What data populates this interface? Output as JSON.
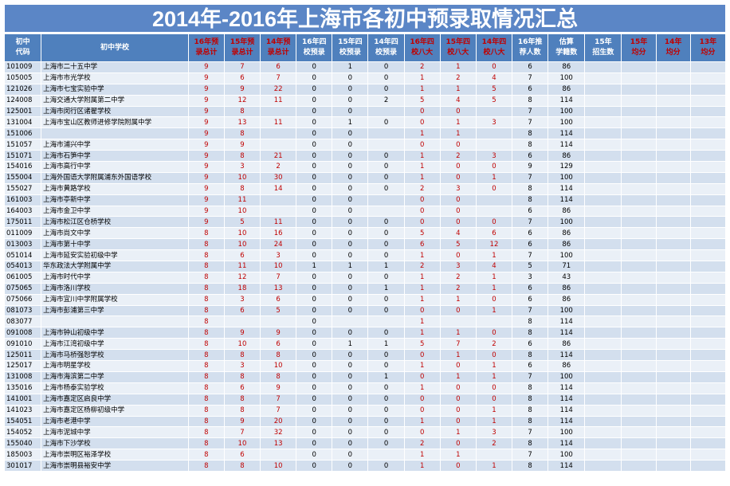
{
  "title": "2014年-2016年上海市各初中预录取情况汇总",
  "colors": {
    "title_bg": "#5b86c6",
    "header_bg": "#4f80bd",
    "row_odd": "#d3dfee",
    "row_even": "#eaf0f7",
    "red_text": "#c00000"
  },
  "columns": [
    {
      "key": "code",
      "label": "初中\n代码",
      "red": false
    },
    {
      "key": "name",
      "label": "初中学校",
      "red": false
    },
    {
      "key": "p16",
      "label": "16年预\n录总计",
      "red": true
    },
    {
      "key": "p15",
      "label": "15年预\n录总计",
      "red": true
    },
    {
      "key": "p14",
      "label": "14年预\n录总计",
      "red": true
    },
    {
      "key": "s4_16",
      "label": "16年四\n校预录",
      "red": false
    },
    {
      "key": "s4_15",
      "label": "15年四\n校预录",
      "red": false
    },
    {
      "key": "s4_14",
      "label": "14年四\n校预录",
      "red": false
    },
    {
      "key": "b8_16",
      "label": "16年四\n校八大",
      "red": true
    },
    {
      "key": "b8_15",
      "label": "15年四\n校八大",
      "red": true
    },
    {
      "key": "b8_14",
      "label": "14年四\n校八大",
      "red": true
    },
    {
      "key": "rec16",
      "label": "16年推\n荐人数",
      "red": false
    },
    {
      "key": "est",
      "label": "估算\n学籍数",
      "red": false
    },
    {
      "key": "enr15",
      "label": "15年\n招生数",
      "red": false
    },
    {
      "key": "avg15",
      "label": "15年\n均分",
      "red": true
    },
    {
      "key": "avg14",
      "label": "14年\n均分",
      "red": true
    },
    {
      "key": "avg13",
      "label": "13年\n均分",
      "red": true
    }
  ],
  "rows": [
    [
      "101009",
      "上海市二十五中学",
      "9",
      "7",
      "6",
      "0",
      "1",
      "0",
      "2",
      "1",
      "0",
      "6",
      "86",
      "",
      "",
      "",
      ""
    ],
    [
      "105005",
      "上海市市光学校",
      "9",
      "6",
      "7",
      "0",
      "0",
      "0",
      "1",
      "2",
      "4",
      "7",
      "100",
      "",
      "",
      "",
      ""
    ],
    [
      "121026",
      "上海市七宝实验中学",
      "9",
      "9",
      "22",
      "0",
      "0",
      "0",
      "1",
      "1",
      "5",
      "6",
      "86",
      "",
      "",
      "",
      ""
    ],
    [
      "124008",
      "上海交通大学附属第二中学",
      "9",
      "12",
      "11",
      "0",
      "0",
      "2",
      "5",
      "4",
      "5",
      "8",
      "114",
      "",
      "",
      "",
      ""
    ],
    [
      "125001",
      "上海市闵行区诸翟学校",
      "9",
      "8",
      "",
      "0",
      "0",
      "",
      "0",
      "0",
      "",
      "7",
      "100",
      "",
      "",
      "",
      ""
    ],
    [
      "131004",
      "上海市宝山区教师进修学院附属中学",
      "9",
      "13",
      "11",
      "0",
      "1",
      "0",
      "0",
      "1",
      "3",
      "7",
      "100",
      "",
      "",
      "",
      ""
    ],
    [
      "151006",
      "",
      "9",
      "8",
      "",
      "0",
      "0",
      "",
      "1",
      "1",
      "",
      "8",
      "114",
      "",
      "",
      "",
      ""
    ],
    [
      "151057",
      "上海市浦兴中学",
      "9",
      "9",
      "",
      "0",
      "0",
      "",
      "0",
      "0",
      "",
      "8",
      "114",
      "",
      "",
      "",
      ""
    ],
    [
      "151071",
      "上海市石笋中学",
      "9",
      "8",
      "21",
      "0",
      "0",
      "0",
      "1",
      "2",
      "3",
      "6",
      "86",
      "",
      "",
      "",
      ""
    ],
    [
      "154016",
      "上海市高行中学",
      "9",
      "3",
      "2",
      "0",
      "0",
      "0",
      "1",
      "0",
      "0",
      "9",
      "129",
      "",
      "",
      "",
      ""
    ],
    [
      "155004",
      "上海外国语大学附属浦东外国语学校",
      "9",
      "10",
      "30",
      "0",
      "0",
      "0",
      "1",
      "0",
      "1",
      "7",
      "100",
      "",
      "",
      "",
      ""
    ],
    [
      "155027",
      "上海市黄路学校",
      "9",
      "8",
      "14",
      "0",
      "0",
      "0",
      "2",
      "3",
      "0",
      "8",
      "114",
      "",
      "",
      "",
      ""
    ],
    [
      "161003",
      "上海市亭新中学",
      "9",
      "11",
      "",
      "0",
      "0",
      "",
      "0",
      "0",
      "",
      "8",
      "114",
      "",
      "",
      "",
      ""
    ],
    [
      "164003",
      "上海市金卫中学",
      "9",
      "10",
      "",
      "0",
      "0",
      "",
      "0",
      "0",
      "",
      "6",
      "86",
      "",
      "",
      "",
      ""
    ],
    [
      "175011",
      "上海市松江区仓桥学校",
      "9",
      "5",
      "11",
      "0",
      "0",
      "0",
      "0",
      "0",
      "0",
      "7",
      "100",
      "",
      "",
      "",
      ""
    ],
    [
      "011009",
      "上海市尚文中学",
      "8",
      "10",
      "16",
      "0",
      "0",
      "0",
      "5",
      "4",
      "6",
      "6",
      "86",
      "",
      "",
      "",
      ""
    ],
    [
      "013003",
      "上海市第十中学",
      "8",
      "10",
      "24",
      "0",
      "0",
      "0",
      "6",
      "5",
      "12",
      "6",
      "86",
      "",
      "",
      "",
      ""
    ],
    [
      "051014",
      "上海市延安实验初级中学",
      "8",
      "6",
      "3",
      "0",
      "0",
      "0",
      "1",
      "0",
      "1",
      "7",
      "100",
      "",
      "",
      "",
      ""
    ],
    [
      "054013",
      "华东政法大学附属中学",
      "8",
      "11",
      "10",
      "1",
      "1",
      "1",
      "2",
      "3",
      "4",
      "5",
      "71",
      "",
      "",
      "",
      ""
    ],
    [
      "061005",
      "上海市时代中学",
      "8",
      "12",
      "7",
      "0",
      "0",
      "0",
      "1",
      "2",
      "1",
      "3",
      "43",
      "",
      "",
      "",
      ""
    ],
    [
      "075065",
      "上海市洛川学校",
      "8",
      "18",
      "13",
      "0",
      "0",
      "1",
      "1",
      "2",
      "1",
      "6",
      "86",
      "",
      "",
      "",
      ""
    ],
    [
      "075066",
      "上海市宜川中学附属学校",
      "8",
      "3",
      "6",
      "0",
      "0",
      "0",
      "1",
      "1",
      "0",
      "6",
      "86",
      "",
      "",
      "",
      ""
    ],
    [
      "081073",
      "上海市彭浦第三中学",
      "8",
      "6",
      "5",
      "0",
      "0",
      "0",
      "0",
      "0",
      "1",
      "7",
      "100",
      "",
      "",
      "",
      ""
    ],
    [
      "083077",
      "",
      "8",
      "",
      "",
      "0",
      "",
      "",
      "1",
      "",
      "",
      "8",
      "114",
      "",
      "",
      "",
      ""
    ],
    [
      "091008",
      "上海市钟山初级中学",
      "8",
      "9",
      "9",
      "0",
      "0",
      "0",
      "1",
      "1",
      "0",
      "8",
      "114",
      "",
      "",
      "",
      ""
    ],
    [
      "091010",
      "上海市江湾初级中学",
      "8",
      "10",
      "6",
      "0",
      "1",
      "1",
      "5",
      "7",
      "2",
      "6",
      "86",
      "",
      "",
      "",
      ""
    ],
    [
      "125011",
      "上海市马桥强恕学校",
      "8",
      "8",
      "8",
      "0",
      "0",
      "0",
      "0",
      "1",
      "0",
      "8",
      "114",
      "",
      "",
      "",
      ""
    ],
    [
      "125017",
      "上海市明星学校",
      "8",
      "3",
      "10",
      "0",
      "0",
      "0",
      "1",
      "0",
      "1",
      "6",
      "86",
      "",
      "",
      "",
      ""
    ],
    [
      "131008",
      "上海市海滨第二中学",
      "8",
      "8",
      "8",
      "0",
      "0",
      "1",
      "0",
      "1",
      "1",
      "7",
      "100",
      "",
      "",
      "",
      ""
    ],
    [
      "135016",
      "上海市杨泰实验学校",
      "8",
      "6",
      "9",
      "0",
      "0",
      "0",
      "1",
      "0",
      "0",
      "8",
      "114",
      "",
      "",
      "",
      ""
    ],
    [
      "141001",
      "上海市嘉定区启良中学",
      "8",
      "8",
      "7",
      "0",
      "0",
      "0",
      "0",
      "0",
      "0",
      "8",
      "114",
      "",
      "",
      "",
      ""
    ],
    [
      "141023",
      "上海市嘉定区杨柳初级中学",
      "8",
      "8",
      "7",
      "0",
      "0",
      "0",
      "0",
      "0",
      "1",
      "8",
      "114",
      "",
      "",
      "",
      ""
    ],
    [
      "154051",
      "上海市老港中学",
      "8",
      "9",
      "20",
      "0",
      "0",
      "0",
      "1",
      "0",
      "1",
      "8",
      "114",
      "",
      "",
      "",
      ""
    ],
    [
      "154052",
      "上海市泥城中学",
      "8",
      "7",
      "32",
      "0",
      "0",
      "0",
      "0",
      "1",
      "3",
      "7",
      "100",
      "",
      "",
      "",
      ""
    ],
    [
      "155040",
      "上海市下沙学校",
      "8",
      "10",
      "13",
      "0",
      "0",
      "0",
      "2",
      "0",
      "2",
      "8",
      "114",
      "",
      "",
      "",
      ""
    ],
    [
      "185003",
      "上海市崇明区裕泽学校",
      "8",
      "6",
      "",
      "0",
      "0",
      "",
      "1",
      "1",
      "",
      "7",
      "100",
      "",
      "",
      "",
      ""
    ],
    [
      "301017",
      "上海市崇明县裕安中学",
      "8",
      "8",
      "10",
      "0",
      "0",
      "0",
      "1",
      "0",
      "1",
      "8",
      "114",
      "",
      "",
      "",
      ""
    ]
  ]
}
